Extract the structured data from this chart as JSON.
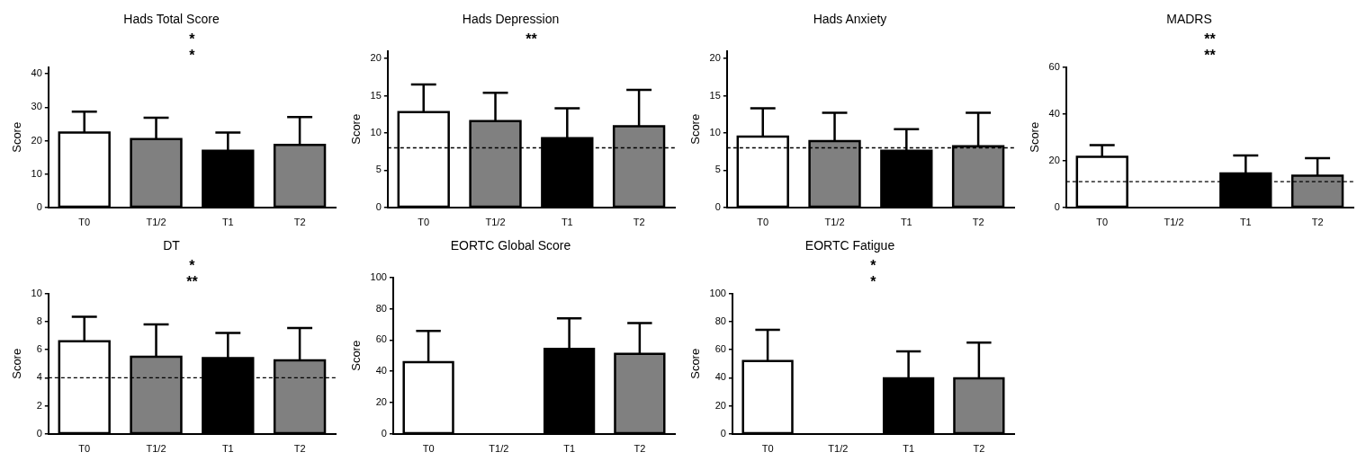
{
  "chart_data": [
    {
      "type": "bar",
      "title": "Hads Total Score",
      "ylabel": "Score",
      "categories": [
        "T0",
        "T1/2",
        "T1",
        "T2"
      ],
      "values": [
        22.4,
        20.5,
        17.0,
        18.7
      ],
      "colors": [
        "#ffffff",
        "#808080",
        "#000000",
        "#808080"
      ],
      "errors": [
        [
          22.4,
          28.7
        ],
        [
          20.5,
          26.9
        ],
        [
          17.0,
          22.4
        ],
        [
          18.7,
          27.1
        ]
      ],
      "ylim": [
        0,
        42
      ],
      "yticks": [
        0,
        10,
        20,
        30,
        40
      ],
      "grid": false,
      "legend": false,
      "annotations": [
        "*",
        "*"
      ]
    },
    {
      "type": "bar",
      "title": "Hads Depression",
      "ylabel": "Score",
      "categories": [
        "T0",
        "T1/2",
        "T1",
        "T2"
      ],
      "values": [
        12.8,
        11.6,
        9.3,
        10.9
      ],
      "colors": [
        "#ffffff",
        "#808080",
        "#000000",
        "#808080"
      ],
      "errors": [
        [
          12.8,
          16.5
        ],
        [
          11.6,
          15.4
        ],
        [
          9.3,
          13.3
        ],
        [
          10.9,
          15.8
        ]
      ],
      "ylim": [
        0,
        21
      ],
      "yticks": [
        0,
        5,
        10,
        15,
        20
      ],
      "grid": false,
      "legend": false,
      "ref_lines": [
        {
          "axis": "y",
          "value": 8,
          "line_style": "dashed"
        }
      ],
      "annotations": [
        "**"
      ]
    },
    {
      "type": "bar",
      "title": "Hads Anxiety",
      "ylabel": "Score",
      "categories": [
        "T0",
        "T1/2",
        "T1",
        "T2"
      ],
      "values": [
        9.5,
        8.9,
        7.6,
        8.2
      ],
      "colors": [
        "#ffffff",
        "#808080",
        "#000000",
        "#808080"
      ],
      "errors": [
        [
          9.5,
          13.3
        ],
        [
          8.9,
          12.7
        ],
        [
          7.6,
          10.5
        ],
        [
          8.2,
          12.7
        ]
      ],
      "ylim": [
        0,
        21
      ],
      "yticks": [
        0,
        5,
        10,
        15,
        20
      ],
      "grid": false,
      "legend": false,
      "ref_lines": [
        {
          "axis": "y",
          "value": 8,
          "line_style": "dashed"
        }
      ]
    },
    {
      "type": "bar",
      "title": "MADRS",
      "ylabel": "Score",
      "categories": [
        "T0",
        "T1/2",
        "T1",
        "T2"
      ],
      "values": [
        21.7,
        null,
        14.5,
        13.6
      ],
      "colors": [
        "#ffffff",
        "#808080",
        "#000000",
        "#808080"
      ],
      "errors": [
        [
          21.7,
          26.7
        ],
        null,
        [
          14.5,
          22.2
        ],
        [
          13.6,
          21.1
        ]
      ],
      "ylim": [
        0,
        60
      ],
      "yticks": [
        0,
        20,
        40,
        60
      ],
      "grid": false,
      "legend": false,
      "ref_lines": [
        {
          "axis": "y",
          "value": 11,
          "line_style": "dashed"
        }
      ],
      "annotations": [
        "**",
        "**"
      ]
    },
    {
      "type": "bar",
      "title": "DT",
      "ylabel": "Score",
      "categories": [
        "T0",
        "T1/2",
        "T1",
        "T2"
      ],
      "values": [
        6.6,
        5.5,
        5.4,
        5.25
      ],
      "colors": [
        "#ffffff",
        "#808080",
        "#000000",
        "#808080"
      ],
      "errors": [
        [
          6.6,
          8.36
        ],
        [
          5.5,
          7.8
        ],
        [
          5.4,
          7.2
        ],
        [
          5.25,
          7.55
        ]
      ],
      "ylim": [
        0,
        10
      ],
      "yticks": [
        0,
        2,
        4,
        6,
        8,
        10
      ],
      "grid": false,
      "legend": false,
      "ref_lines": [
        {
          "axis": "y",
          "value": 4,
          "line_style": "dashed"
        }
      ],
      "annotations": [
        "*",
        "**"
      ]
    },
    {
      "type": "bar",
      "title": "EORTC Global Score",
      "ylabel": "Score",
      "categories": [
        "T0",
        "T1/2",
        "T1",
        "T2"
      ],
      "values": [
        45.8,
        null,
        54.4,
        51.2
      ],
      "colors": [
        "#ffffff",
        "#808080",
        "#000000",
        "#808080"
      ],
      "errors": [
        [
          45.8,
          65.8
        ],
        null,
        [
          54.4,
          73.9
        ],
        [
          51.2,
          70.9
        ]
      ],
      "ylim": [
        0,
        100
      ],
      "yticks": [
        0,
        20,
        40,
        60,
        80,
        100
      ],
      "grid": false,
      "legend": false
    },
    {
      "type": "bar",
      "title": "EORTC Fatigue",
      "ylabel": "Score",
      "categories": [
        "T0",
        "T1/2",
        "T1",
        "T2"
      ],
      "values": [
        52.0,
        null,
        39.6,
        39.6
      ],
      "colors": [
        "#ffffff",
        "#808080",
        "#000000",
        "#808080"
      ],
      "errors": [
        [
          52.0,
          74.3
        ],
        null,
        [
          39.6,
          58.9
        ],
        [
          39.6,
          65.1
        ]
      ],
      "ylim": [
        0,
        100
      ],
      "yticks": [
        0,
        20,
        40,
        60,
        80,
        100
      ],
      "grid": false,
      "legend": false,
      "annotations": [
        "*",
        "*"
      ]
    }
  ]
}
